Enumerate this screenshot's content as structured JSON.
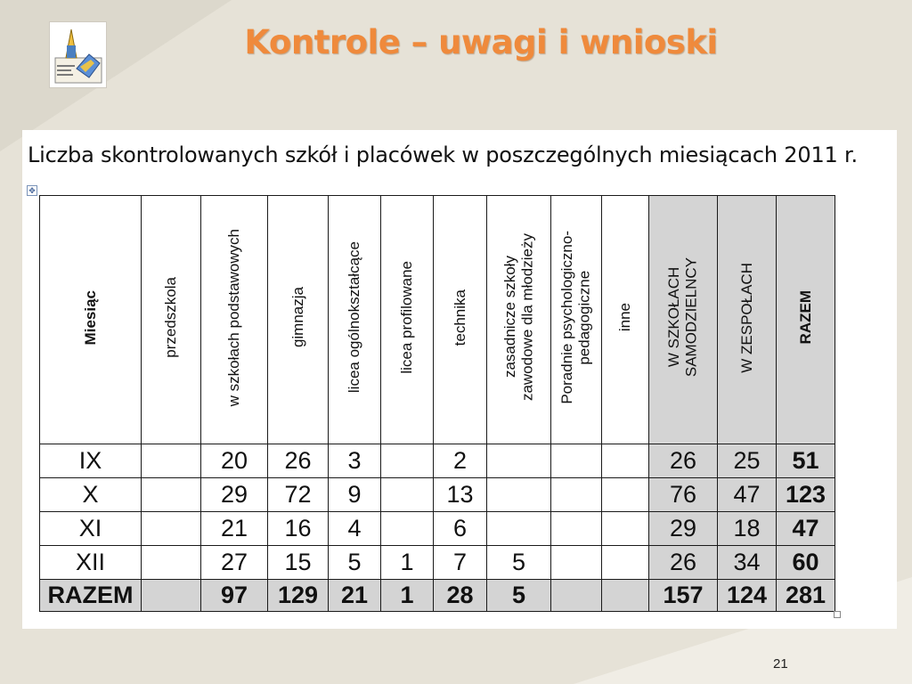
{
  "slide": {
    "title": "Kontrole – uwagi i wnioski",
    "page_number": "21"
  },
  "document": {
    "heading": "Liczba skontrolowanych szkół i placówek w poszczególnych miesiącach 2011 r."
  },
  "table": {
    "headers": [
      "Miesiąc",
      "przedszkola",
      "w szkołach podstawowych",
      "gimnazja",
      "licea ogólnokształcące",
      "licea profilowane",
      "technika",
      "zasadnicze szkoły\nzawodowe dla młodzieży",
      "Poradnie psychologiczno-\npedagogiczne",
      "inne",
      "W SZKOŁACH\nSAMODZIELNCY",
      "W ZESPOŁACH",
      "RAZEM"
    ],
    "rows": [
      [
        "IX",
        "",
        "20",
        "26",
        "3",
        "",
        "2",
        "",
        "",
        "",
        "26",
        "25",
        "51"
      ],
      [
        "X",
        "",
        "29",
        "72",
        "9",
        "",
        "13",
        "",
        "",
        "",
        "76",
        "47",
        "123"
      ],
      [
        "XI",
        "",
        "21",
        "16",
        "4",
        "",
        "6",
        "",
        "",
        "",
        "29",
        "18",
        "47"
      ],
      [
        "XII",
        "",
        "27",
        "15",
        "5",
        "1",
        "7",
        "5",
        "",
        "",
        "26",
        "34",
        "60"
      ],
      [
        "RAZEM",
        "",
        "97",
        "129",
        "21",
        "1",
        "28",
        "5",
        "",
        "",
        "157",
        "124",
        "281"
      ]
    ]
  },
  "colors": {
    "title": "#ef8a3c",
    "summary_fill": "#d4d4d4",
    "background": "#e6e2d7"
  }
}
